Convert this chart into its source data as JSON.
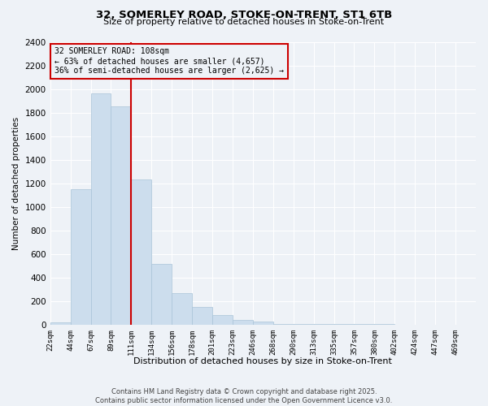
{
  "title1": "32, SOMERLEY ROAD, STOKE-ON-TRENT, ST1 6TB",
  "title2": "Size of property relative to detached houses in Stoke-on-Trent",
  "xlabel": "Distribution of detached houses by size in Stoke-on-Trent",
  "ylabel": "Number of detached properties",
  "bins": [
    "22sqm",
    "44sqm",
    "67sqm",
    "89sqm",
    "111sqm",
    "134sqm",
    "156sqm",
    "178sqm",
    "201sqm",
    "223sqm",
    "246sqm",
    "268sqm",
    "290sqm",
    "313sqm",
    "335sqm",
    "357sqm",
    "380sqm",
    "402sqm",
    "424sqm",
    "447sqm",
    "469sqm"
  ],
  "bar_heights": [
    20,
    1150,
    1960,
    1850,
    1230,
    520,
    270,
    155,
    80,
    40,
    30,
    10,
    5,
    5,
    5,
    5,
    5,
    2,
    2,
    2,
    2
  ],
  "vline_x": 4.0,
  "annotation_title": "32 SOMERLEY ROAD: 108sqm",
  "annotation_line1": "← 63% of detached houses are smaller (4,657)",
  "annotation_line2": "36% of semi-detached houses are larger (2,625) →",
  "ylim": [
    0,
    2400
  ],
  "yticks": [
    0,
    200,
    400,
    600,
    800,
    1000,
    1200,
    1400,
    1600,
    1800,
    2000,
    2200,
    2400
  ],
  "bar_color": "#ccdded",
  "bar_edgecolor": "#aac4d8",
  "vline_color": "#cc0000",
  "annot_box_edgecolor": "#cc0000",
  "footer1": "Contains HM Land Registry data © Crown copyright and database right 2025.",
  "footer2": "Contains public sector information licensed under the Open Government Licence v3.0.",
  "bg_color": "#eef2f7"
}
